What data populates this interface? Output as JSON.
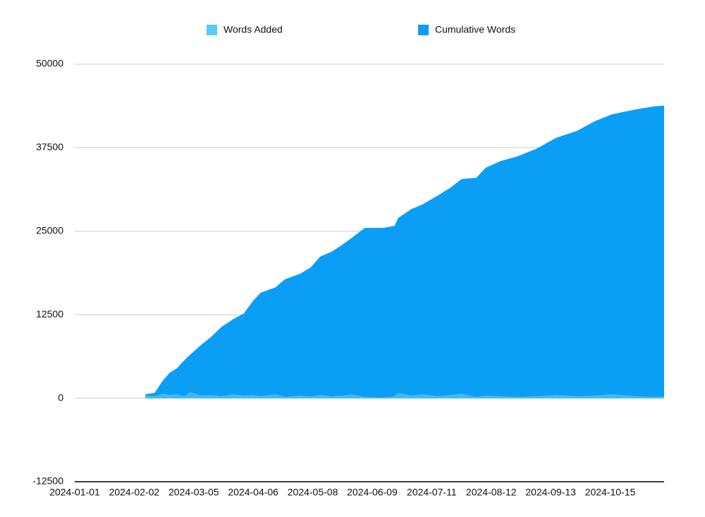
{
  "chart_data": {
    "type": "area",
    "x": [
      "2024-02-08",
      "2024-02-13",
      "2024-02-17",
      "2024-02-21",
      "2024-02-25",
      "2024-02-29",
      "2024-03-03",
      "2024-03-09",
      "2024-03-14",
      "2024-03-20",
      "2024-03-26",
      "2024-04-01",
      "2024-04-06",
      "2024-04-10",
      "2024-04-18",
      "2024-04-23",
      "2024-05-01",
      "2024-05-07",
      "2024-05-12",
      "2024-05-18",
      "2024-05-24",
      "2024-05-29",
      "2024-06-05",
      "2024-06-15",
      "2024-06-21",
      "2024-06-23",
      "2024-06-30",
      "2024-07-06",
      "2024-07-14",
      "2024-07-21",
      "2024-07-27",
      "2024-08-04",
      "2024-08-09",
      "2024-08-17",
      "2024-08-26",
      "2024-09-05",
      "2024-09-16",
      "2024-09-27",
      "2024-10-07",
      "2024-10-16",
      "2024-10-30",
      "2024-11-08",
      "2024-11-13"
    ],
    "series": [
      {
        "name": "Cumulative Words",
        "color": "#0a9ff5",
        "values": [
          600,
          800,
          2500,
          3800,
          4500,
          5700,
          6500,
          8000,
          9100,
          10700,
          11800,
          12700,
          14600,
          15800,
          16600,
          17800,
          18600,
          19600,
          21200,
          21900,
          23000,
          24000,
          25500,
          25500,
          25800,
          27000,
          28300,
          29000,
          30300,
          31500,
          32800,
          33000,
          34500,
          35500,
          36200,
          37300,
          39000,
          40000,
          41500,
          42500,
          43300,
          43700,
          43800
        ]
      },
      {
        "name": "Words Added",
        "color": "#5ac8fa",
        "values": [
          400,
          300,
          700,
          500,
          600,
          300,
          900,
          400,
          500,
          300,
          600,
          400,
          500,
          300,
          600,
          200,
          400,
          300,
          500,
          300,
          400,
          600,
          200,
          100,
          300,
          800,
          400,
          600,
          300,
          500,
          700,
          200,
          400,
          300,
          200,
          300,
          500,
          300,
          400,
          600,
          300,
          200,
          300
        ]
      }
    ],
    "xlim": [
      "2024-01-01",
      "2024-11-13"
    ],
    "xticks": [
      "2024-01-01",
      "2024-02-02",
      "2024-03-05",
      "2024-04-06",
      "2024-05-08",
      "2024-06-09",
      "2024-07-11",
      "2024-08-12",
      "2024-09-13",
      "2024-10-15"
    ],
    "ylim": [
      -12500,
      50000
    ],
    "yticks": [
      -12500,
      0,
      12500,
      25000,
      37500,
      50000
    ],
    "grid": true
  }
}
